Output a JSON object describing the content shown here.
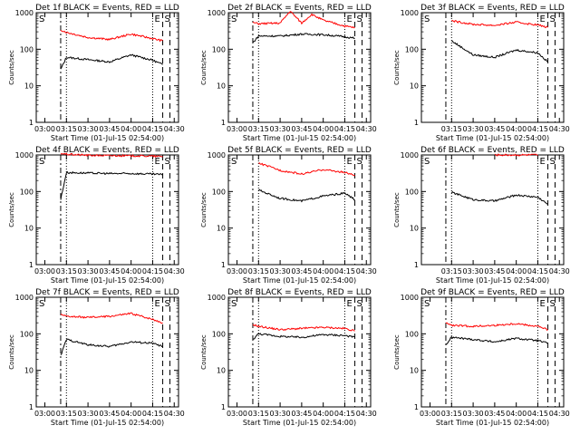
{
  "chart_data": [
    {
      "type": "line",
      "title": "Det 1f BLACK = Events, RED = LLD",
      "xlabel": "Start Time (01-Jul-15 02:54:00)",
      "ylabel": "Counts/sec",
      "yscale": "log",
      "ylim": [
        1,
        1000
      ],
      "x_ticks": [
        "03:00",
        "03:15",
        "03:30",
        "03:45",
        "04:00",
        "04:15",
        "04:30"
      ],
      "y_ticks": [
        "1",
        "10",
        "100",
        "1000"
      ],
      "markers": [
        "S",
        "E",
        "S"
      ],
      "series": [
        {
          "name": "Events",
          "color": "#000000",
          "x": [
            "03:11",
            "03:15",
            "03:30",
            "03:45",
            "04:00",
            "04:15",
            "04:22"
          ],
          "values": [
            28,
            60,
            52,
            45,
            70,
            50,
            38
          ]
        },
        {
          "name": "LLD",
          "color": "#ff0000",
          "x": [
            "03:11",
            "03:15",
            "03:30",
            "03:45",
            "04:00",
            "04:15",
            "04:22"
          ],
          "values": [
            340,
            290,
            210,
            185,
            260,
            195,
            170
          ]
        }
      ]
    },
    {
      "type": "line",
      "title": "Det 2f BLACK = Events, RED = LLD",
      "xlabel": "Start Time (01-Jul-15 02:54:00)",
      "ylabel": "Counts/sec",
      "yscale": "log",
      "ylim": [
        1,
        1000
      ],
      "x_ticks": [
        "03:00",
        "03:15",
        "03:30",
        "03:45",
        "04:00",
        "04:15",
        "04:30"
      ],
      "y_ticks": [
        "1",
        "10",
        "100",
        "1000"
      ],
      "markers": [
        "S",
        "E",
        "S"
      ],
      "series": [
        {
          "name": "Events",
          "color": "#000000",
          "x": [
            "03:11",
            "03:15",
            "03:30",
            "03:45",
            "04:00",
            "04:15",
            "04:22"
          ],
          "values": [
            150,
            230,
            230,
            260,
            250,
            220,
            200
          ]
        },
        {
          "name": "LLD",
          "color": "#ff0000",
          "x": [
            "03:11",
            "03:15",
            "03:30",
            "03:37",
            "03:45",
            "03:52",
            "04:00",
            "04:15",
            "04:22"
          ],
          "values": [
            540,
            500,
            520,
            1100,
            520,
            900,
            620,
            430,
            390
          ]
        }
      ]
    },
    {
      "type": "line",
      "title": "Det 3f BLACK = Events, RED = LLD",
      "xlabel": "Start Time (01-Jul-15 02:54:00)",
      "ylabel": "Counts/sec",
      "yscale": "log",
      "ylim": [
        1,
        1000
      ],
      "x_ticks": [
        "03:15",
        "03:30",
        "03:45",
        "04:00",
        "04:15",
        "04:30"
      ],
      "y_ticks": [
        "1",
        "10",
        "100",
        "1000"
      ],
      "markers": [
        "S",
        "E",
        "S"
      ],
      "series": [
        {
          "name": "Events",
          "color": "#000000",
          "x": [
            "03:15",
            "03:30",
            "03:45",
            "04:00",
            "04:15",
            "04:22"
          ],
          "values": [
            170,
            70,
            60,
            95,
            80,
            45
          ]
        },
        {
          "name": "LLD",
          "color": "#ff0000",
          "x": [
            "03:15",
            "03:30",
            "03:45",
            "04:00",
            "04:15",
            "04:22"
          ],
          "values": [
            600,
            480,
            450,
            550,
            460,
            400
          ]
        }
      ]
    },
    {
      "type": "line",
      "title": "Det 4f BLACK = Events, RED = LLD",
      "xlabel": "Start Time (01-Jul-15 02:54:00)",
      "ylabel": "Counts/sec",
      "yscale": "log",
      "ylim": [
        1,
        1000
      ],
      "x_ticks": [
        "03:00",
        "03:15",
        "03:30",
        "03:45",
        "04:00",
        "04:15",
        "04:30"
      ],
      "y_ticks": [
        "1",
        "10",
        "100",
        "1000"
      ],
      "markers": [
        "S",
        "E",
        "S"
      ],
      "series": [
        {
          "name": "Events",
          "color": "#000000",
          "x": [
            "03:11",
            "03:15",
            "03:30",
            "03:45",
            "04:00",
            "04:15",
            "04:22"
          ],
          "values": [
            60,
            330,
            320,
            310,
            310,
            300,
            290
          ]
        },
        {
          "name": "LLD",
          "color": "#ff0000",
          "x": [
            "03:11",
            "03:15",
            "03:30",
            "03:45",
            "04:00",
            "04:15",
            "04:22"
          ],
          "values": [
            1100,
            1050,
            980,
            960,
            950,
            930,
            900
          ]
        }
      ]
    },
    {
      "type": "line",
      "title": "Det 5f BLACK = Events, RED = LLD",
      "xlabel": "Start Time (01-Jul-15 02:54:00)",
      "ylabel": "Counts/sec",
      "yscale": "log",
      "ylim": [
        1,
        1000
      ],
      "x_ticks": [
        "03:00",
        "03:15",
        "03:30",
        "03:45",
        "04:00",
        "04:15",
        "04:30"
      ],
      "y_ticks": [
        "1",
        "10",
        "100",
        "1000"
      ],
      "markers": [
        "S",
        "E",
        "S"
      ],
      "series": [
        {
          "name": "Events",
          "color": "#000000",
          "x": [
            "03:15",
            "03:30",
            "03:45",
            "04:00",
            "04:15",
            "04:22"
          ],
          "values": [
            110,
            65,
            55,
            75,
            90,
            60
          ]
        },
        {
          "name": "LLD",
          "color": "#ff0000",
          "x": [
            "03:15",
            "03:30",
            "03:45",
            "04:00",
            "04:15",
            "04:22"
          ],
          "values": [
            600,
            380,
            300,
            400,
            330,
            280
          ]
        }
      ]
    },
    {
      "type": "line",
      "title": "Det 6f BLACK = Events, RED = LLD",
      "xlabel": "Start Time (01-Jul-15 02:54:00)",
      "ylabel": "Counts/sec",
      "yscale": "log",
      "ylim": [
        1,
        1000
      ],
      "x_ticks": [
        "03:15",
        "03:30",
        "03:45",
        "04:00",
        "04:15",
        "04:30"
      ],
      "y_ticks": [
        "1",
        "10",
        "100",
        "1000"
      ],
      "markers": [
        "S",
        "E",
        "S"
      ],
      "series": [
        {
          "name": "Events",
          "color": "#000000",
          "x": [
            "03:15",
            "03:30",
            "03:45",
            "04:00",
            "04:15",
            "04:22"
          ],
          "values": [
            95,
            60,
            55,
            80,
            70,
            45
          ]
        },
        {
          "name": "LLD",
          "color": "#ff0000",
          "x": [
            "03:45",
            "04:00",
            "04:15"
          ],
          "values": [
            1000,
            1000,
            1000
          ]
        }
      ]
    },
    {
      "type": "line",
      "title": "Det 7f BLACK = Events, RED = LLD",
      "xlabel": "Start Time (01-Jul-15 02:54:00)",
      "ylabel": "Counts/sec",
      "yscale": "log",
      "ylim": [
        1,
        1000
      ],
      "x_ticks": [
        "03:00",
        "03:15",
        "03:30",
        "03:45",
        "04:00",
        "04:15",
        "04:30"
      ],
      "y_ticks": [
        "1",
        "10",
        "100",
        "1000"
      ],
      "markers": [
        "S",
        "E",
        "S"
      ],
      "series": [
        {
          "name": "Events",
          "color": "#000000",
          "x": [
            "03:11",
            "03:15",
            "03:30",
            "03:45",
            "04:00",
            "04:15",
            "04:22"
          ],
          "values": [
            25,
            70,
            50,
            45,
            60,
            55,
            45
          ]
        },
        {
          "name": "LLD",
          "color": "#ff0000",
          "x": [
            "03:11",
            "03:15",
            "03:30",
            "03:45",
            "04:00",
            "04:15",
            "04:22"
          ],
          "values": [
            330,
            300,
            280,
            300,
            360,
            250,
            200
          ]
        }
      ]
    },
    {
      "type": "line",
      "title": "Det 8f BLACK = Events, RED = LLD",
      "xlabel": "Start Time (01-Jul-15 02:54:00)",
      "ylabel": "Counts/sec",
      "yscale": "log",
      "ylim": [
        1,
        1000
      ],
      "x_ticks": [
        "03:00",
        "03:15",
        "03:30",
        "03:45",
        "04:00",
        "04:15",
        "04:30"
      ],
      "y_ticks": [
        "1",
        "10",
        "100",
        "1000"
      ],
      "markers": [
        "S",
        "E",
        "S"
      ],
      "series": [
        {
          "name": "Events",
          "color": "#000000",
          "x": [
            "03:11",
            "03:15",
            "03:30",
            "03:45",
            "04:00",
            "04:15",
            "04:22"
          ],
          "values": [
            70,
            100,
            85,
            80,
            95,
            90,
            80
          ]
        },
        {
          "name": "LLD",
          "color": "#ff0000",
          "x": [
            "03:11",
            "03:15",
            "03:30",
            "03:45",
            "04:00",
            "04:15",
            "04:22"
          ],
          "values": [
            180,
            160,
            130,
            140,
            150,
            140,
            120
          ]
        }
      ]
    },
    {
      "type": "line",
      "title": "Det 9f BLACK = Events, RED = LLD",
      "xlabel": "Start Time (01-Jul-15 02:54:00)",
      "ylabel": "Counts/sec",
      "yscale": "log",
      "ylim": [
        1,
        1000
      ],
      "x_ticks": [
        "03:00",
        "03:15",
        "03:30",
        "03:45",
        "04:00",
        "04:15",
        "04:30"
      ],
      "y_ticks": [
        "1",
        "10",
        "100",
        "1000"
      ],
      "markers": [
        "S",
        "E",
        "S"
      ],
      "series": [
        {
          "name": "Events",
          "color": "#000000",
          "x": [
            "03:11",
            "03:15",
            "03:30",
            "03:45",
            "04:00",
            "04:15",
            "04:22"
          ],
          "values": [
            50,
            80,
            70,
            60,
            75,
            65,
            55
          ]
        },
        {
          "name": "LLD",
          "color": "#ff0000",
          "x": [
            "03:11",
            "03:15",
            "03:30",
            "03:45",
            "04:00",
            "04:15",
            "04:22"
          ],
          "values": [
            200,
            170,
            160,
            170,
            190,
            160,
            130
          ]
        }
      ]
    }
  ]
}
